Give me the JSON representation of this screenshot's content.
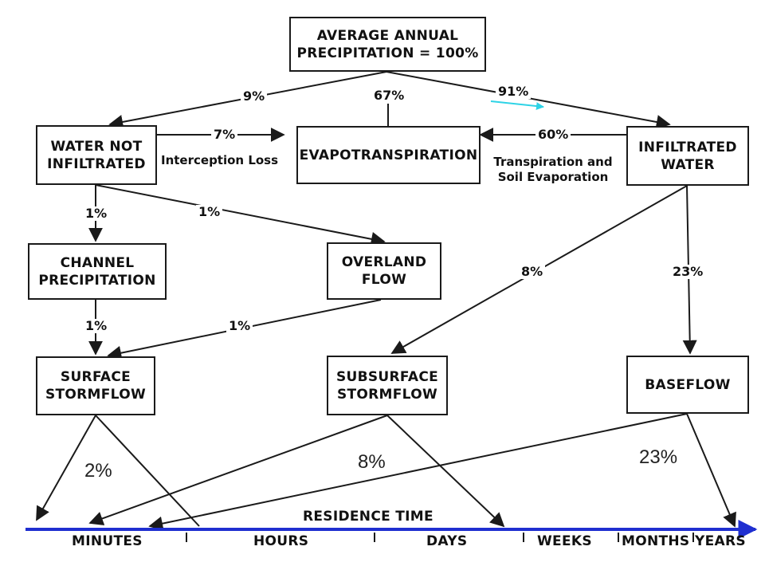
{
  "nodes": {
    "precipitation": "AVERAGE ANNUAL\nPRECIPITATION = 100%",
    "water_not_infiltrated": "WATER NOT\nINFILTRATED",
    "evapotranspiration": "EVAPOTRANSPIRATION",
    "infiltrated_water": "INFILTRATED\nWATER",
    "channel_precipitation": "CHANNEL\nPRECIPITATION",
    "overland_flow": "OVERLAND\nFLOW",
    "surface_stormflow": "SURFACE\nSTORMFLOW",
    "subsurface_stormflow": "SUBSURFACE\nSTORMFLOW",
    "baseflow": "BASEFLOW"
  },
  "edges": {
    "precip_to_not_infiltrated": "9%",
    "precip_to_evapotranspiration": "67%",
    "precip_to_infiltrated": "91%",
    "not_infiltrated_to_evap": "7%",
    "interception_loss": "Interception Loss",
    "infiltrated_to_evap": "60%",
    "transpiration_soil_evap": "Transpiration and\nSoil Evaporation",
    "not_infiltrated_to_channel": "1%",
    "not_infiltrated_to_overland": "1%",
    "channel_to_surface": "1%",
    "overland_to_surface": "1%",
    "infiltrated_to_subsurface": "8%",
    "infiltrated_to_baseflow": "23%"
  },
  "annotations": {
    "surface_share": "2%",
    "subsurface_share": "8%",
    "baseflow_share": "23%"
  },
  "residence_time": {
    "title": "RESIDENCE TIME",
    "scale": [
      "MINUTES",
      "HOURS",
      "DAYS",
      "WEEKS",
      "MONTHS",
      "YEARS"
    ]
  },
  "colors": {
    "ink": "#1a1a1a",
    "timeline_arrow": "#1f2fd0",
    "highlight_arrow": "#2ed3e6"
  }
}
